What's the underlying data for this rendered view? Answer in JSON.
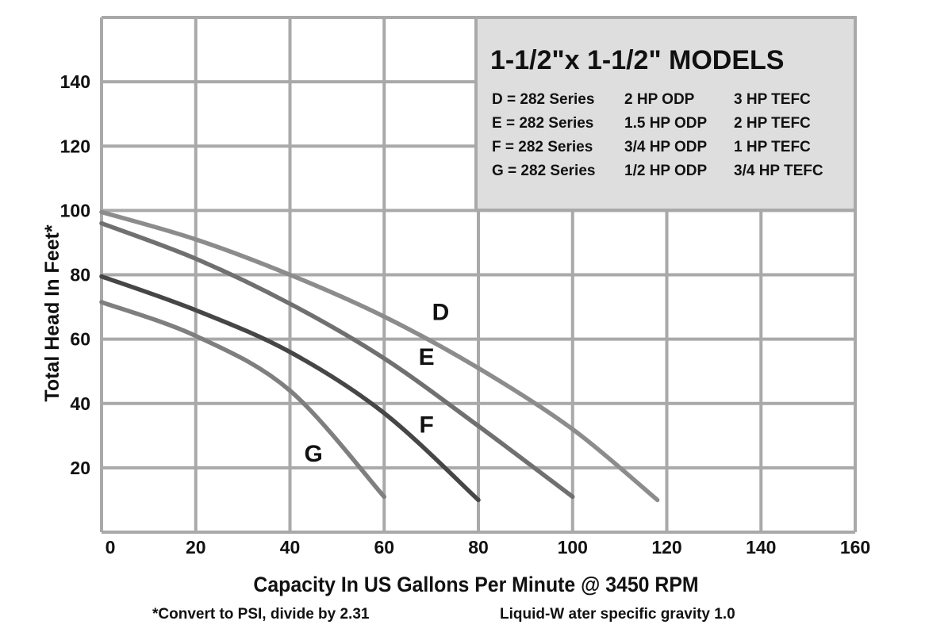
{
  "chart_data": {
    "type": "line",
    "title": "1-1/2\"x 1-1/2\" MODELS",
    "xlabel": "Capacity In US Gallons Per Minute @ 3450 RPM",
    "ylabel": "Total Head In Feet*",
    "xlim": [
      0,
      160
    ],
    "ylim": [
      0,
      160
    ],
    "x_ticks": [
      0,
      20,
      40,
      60,
      80,
      100,
      120,
      140,
      160
    ],
    "y_ticks": [
      20,
      40,
      60,
      80,
      100,
      120,
      140
    ],
    "grid": true,
    "legend_position": "top-right",
    "legend_rows": [
      [
        "D = 282 Series",
        "2 HP ODP",
        "3 HP TEFC"
      ],
      [
        "E = 282 Series",
        "1.5 HP ODP",
        "2 HP TEFC"
      ],
      [
        "F = 282 Series",
        "3/4 HP ODP",
        "1 HP TEFC"
      ],
      [
        "G = 282 Series",
        "1/2 HP ODP",
        "3/4 HP TEFC"
      ]
    ],
    "series": [
      {
        "name": "D",
        "color": "#8c8c8c",
        "x": [
          0,
          20,
          40,
          60,
          80,
          100,
          118
        ],
        "y": [
          99.5,
          91,
          80,
          67,
          51,
          32,
          10
        ]
      },
      {
        "name": "E",
        "color": "#707070",
        "x": [
          0,
          20,
          40,
          60,
          80,
          100
        ],
        "y": [
          96,
          85,
          71,
          54,
          33,
          11
        ]
      },
      {
        "name": "F",
        "color": "#464646",
        "x": [
          0,
          20,
          40,
          60,
          80
        ],
        "y": [
          79.5,
          69,
          56,
          37,
          10
        ]
      },
      {
        "name": "G",
        "color": "#7f7f7f",
        "x": [
          0,
          20,
          40,
          60
        ],
        "y": [
          71.5,
          61,
          44,
          11
        ]
      }
    ],
    "curve_labels": [
      {
        "text": "D",
        "x": 72,
        "y": 66
      },
      {
        "text": "E",
        "x": 69,
        "y": 52
      },
      {
        "text": "F",
        "x": 69,
        "y": 31
      },
      {
        "text": "G",
        "x": 45,
        "y": 22
      }
    ]
  },
  "footnotes": {
    "psi": "*Convert to PSI, divide by 2.31",
    "gravity": "Liquid-W ater specific gravity 1.0"
  }
}
